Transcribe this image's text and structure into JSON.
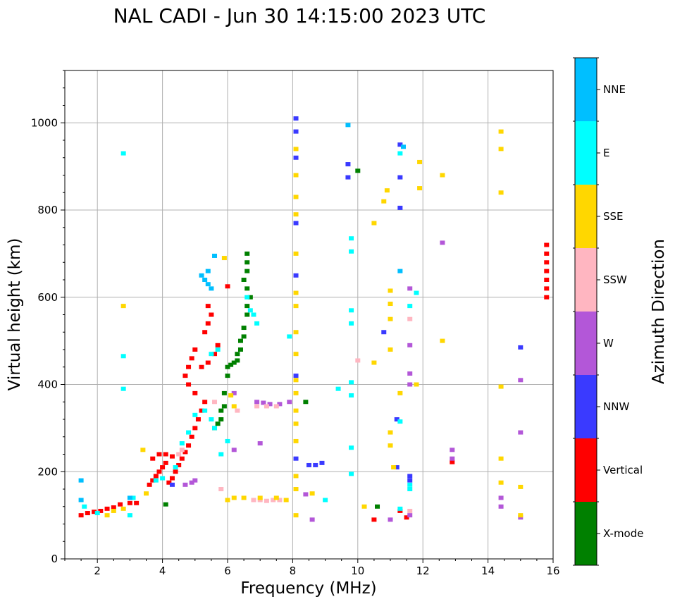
{
  "chart_data": {
    "type": "scatter",
    "title": "NAL CADI - Jun 30 14:15:00 2023 UTC",
    "xlabel": "Frequency (MHz)",
    "ylabel": "Virtual height (km)",
    "xlim": [
      1,
      16
    ],
    "ylim": [
      0,
      1120
    ],
    "xticks": [
      2,
      4,
      6,
      8,
      10,
      12,
      14,
      16
    ],
    "yticks": [
      0,
      200,
      400,
      600,
      800,
      1000
    ],
    "grid": true,
    "colorbar": {
      "title": "Azimuth Direction",
      "categories": [
        {
          "label": "X-mode",
          "color": "#008000"
        },
        {
          "label": "Vertical",
          "color": "#ff0000"
        },
        {
          "label": "NNW",
          "color": "#3a3aff"
        },
        {
          "label": "W",
          "color": "#b357d8"
        },
        {
          "label": "SSW",
          "color": "#ffb6c1"
        },
        {
          "label": "SSE",
          "color": "#ffd700"
        },
        {
          "label": "E",
          "color": "#00ffff"
        },
        {
          "label": "NNE",
          "color": "#00bfff"
        }
      ]
    },
    "series": [
      {
        "name": "Vertical",
        "points": [
          [
            1.5,
            100
          ],
          [
            1.7,
            105
          ],
          [
            1.9,
            108
          ],
          [
            2.1,
            110
          ],
          [
            2.3,
            115
          ],
          [
            2.5,
            118
          ],
          [
            2.7,
            125
          ],
          [
            3.0,
            128
          ],
          [
            3.2,
            128
          ],
          [
            3.6,
            170
          ],
          [
            3.7,
            180
          ],
          [
            3.8,
            190
          ],
          [
            3.9,
            200
          ],
          [
            4.0,
            210
          ],
          [
            4.1,
            220
          ],
          [
            4.2,
            175
          ],
          [
            4.3,
            185
          ],
          [
            4.4,
            200
          ],
          [
            4.5,
            215
          ],
          [
            4.6,
            230
          ],
          [
            4.7,
            245
          ],
          [
            4.8,
            260
          ],
          [
            4.9,
            280
          ],
          [
            5.0,
            300
          ],
          [
            5.1,
            320
          ],
          [
            5.2,
            340
          ],
          [
            5.3,
            360
          ],
          [
            5.0,
            380
          ],
          [
            4.8,
            400
          ],
          [
            4.7,
            420
          ],
          [
            4.8,
            440
          ],
          [
            4.9,
            460
          ],
          [
            5.0,
            480
          ],
          [
            5.2,
            440
          ],
          [
            5.4,
            450
          ],
          [
            5.6,
            470
          ],
          [
            5.7,
            490
          ],
          [
            5.3,
            520
          ],
          [
            5.4,
            540
          ],
          [
            5.5,
            560
          ],
          [
            5.4,
            580
          ],
          [
            3.7,
            230
          ],
          [
            3.9,
            240
          ],
          [
            4.1,
            240
          ],
          [
            4.3,
            235
          ],
          [
            6.0,
            625
          ],
          [
            15.8,
            600
          ],
          [
            15.8,
            620
          ],
          [
            15.8,
            640
          ],
          [
            15.8,
            660
          ],
          [
            15.8,
            680
          ],
          [
            15.8,
            700
          ],
          [
            15.8,
            720
          ],
          [
            12.9,
            222
          ],
          [
            10.5,
            90
          ],
          [
            11.3,
            110
          ],
          [
            11.5,
            95
          ]
        ]
      },
      {
        "name": "X-mode",
        "points": [
          [
            5.6,
            300
          ],
          [
            5.7,
            310
          ],
          [
            5.8,
            320
          ],
          [
            5.8,
            340
          ],
          [
            5.9,
            350
          ],
          [
            5.9,
            380
          ],
          [
            6.0,
            420
          ],
          [
            6.0,
            440
          ],
          [
            6.1,
            445
          ],
          [
            6.2,
            450
          ],
          [
            6.3,
            455
          ],
          [
            6.3,
            470
          ],
          [
            6.4,
            480
          ],
          [
            6.4,
            500
          ],
          [
            6.5,
            510
          ],
          [
            6.5,
            530
          ],
          [
            6.6,
            560
          ],
          [
            6.6,
            580
          ],
          [
            6.7,
            600
          ],
          [
            6.6,
            620
          ],
          [
            6.5,
            640
          ],
          [
            6.6,
            660
          ],
          [
            6.6,
            680
          ],
          [
            6.6,
            700
          ],
          [
            4.1,
            125
          ],
          [
            8.4,
            360
          ],
          [
            10.0,
            890
          ],
          [
            10.6,
            120
          ]
        ]
      },
      {
        "name": "NNW",
        "points": [
          [
            8.1,
            1010
          ],
          [
            8.1,
            980
          ],
          [
            8.1,
            920
          ],
          [
            8.1,
            770
          ],
          [
            8.1,
            650
          ],
          [
            8.1,
            420
          ],
          [
            8.1,
            230
          ],
          [
            8.5,
            215
          ],
          [
            8.7,
            215
          ],
          [
            8.9,
            220
          ],
          [
            11.2,
            210
          ],
          [
            11.6,
            180
          ],
          [
            11.6,
            190
          ],
          [
            11.2,
            320
          ],
          [
            10.8,
            520
          ],
          [
            11.3,
            805
          ],
          [
            11.3,
            875
          ],
          [
            11.3,
            950
          ],
          [
            9.7,
            905
          ],
          [
            9.7,
            875
          ],
          [
            15.0,
            485
          ],
          [
            4.3,
            170
          ]
        ]
      },
      {
        "name": "W",
        "points": [
          [
            4.7,
            170
          ],
          [
            4.9,
            175
          ],
          [
            5.0,
            180
          ],
          [
            6.9,
            360
          ],
          [
            7.1,
            358
          ],
          [
            7.3,
            355
          ],
          [
            7.6,
            355
          ],
          [
            7.9,
            360
          ],
          [
            6.2,
            250
          ],
          [
            6.2,
            380
          ],
          [
            8.4,
            148
          ],
          [
            8.6,
            90
          ],
          [
            11.0,
            90
          ],
          [
            11.6,
            100
          ],
          [
            11.6,
            400
          ],
          [
            11.6,
            425
          ],
          [
            11.6,
            490
          ],
          [
            11.6,
            620
          ],
          [
            12.6,
            725
          ],
          [
            12.9,
            230
          ],
          [
            12.9,
            250
          ],
          [
            14.4,
            140
          ],
          [
            14.4,
            120
          ],
          [
            15.0,
            410
          ],
          [
            15.0,
            290
          ],
          [
            15.0,
            95
          ],
          [
            7.0,
            265
          ]
        ]
      },
      {
        "name": "SSW",
        "points": [
          [
            6.8,
            135
          ],
          [
            7.0,
            135
          ],
          [
            7.2,
            133
          ],
          [
            7.4,
            135
          ],
          [
            7.6,
            135
          ],
          [
            6.9,
            350
          ],
          [
            7.2,
            350
          ],
          [
            7.5,
            350
          ],
          [
            5.8,
            160
          ],
          [
            5.6,
            360
          ],
          [
            6.3,
            340
          ],
          [
            11.6,
            110
          ],
          [
            11.6,
            550
          ],
          [
            10.0,
            455
          ],
          [
            4.5,
            240
          ],
          [
            4.6,
            250
          ]
        ]
      },
      {
        "name": "SSE",
        "points": [
          [
            2.3,
            100
          ],
          [
            2.5,
            110
          ],
          [
            2.8,
            115
          ],
          [
            3.4,
            250
          ],
          [
            3.5,
            150
          ],
          [
            6.0,
            135
          ],
          [
            6.2,
            140
          ],
          [
            6.5,
            140
          ],
          [
            7.0,
            140
          ],
          [
            7.5,
            140
          ],
          [
            7.8,
            135
          ],
          [
            8.1,
            100
          ],
          [
            8.1,
            160
          ],
          [
            8.1,
            190
          ],
          [
            8.1,
            270
          ],
          [
            8.1,
            310
          ],
          [
            8.1,
            340
          ],
          [
            8.1,
            380
          ],
          [
            8.1,
            410
          ],
          [
            8.1,
            470
          ],
          [
            8.1,
            520
          ],
          [
            8.1,
            580
          ],
          [
            8.1,
            610
          ],
          [
            8.1,
            700
          ],
          [
            8.1,
            790
          ],
          [
            8.1,
            830
          ],
          [
            8.1,
            880
          ],
          [
            8.1,
            940
          ],
          [
            8.6,
            150
          ],
          [
            10.2,
            120
          ],
          [
            10.5,
            450
          ],
          [
            10.5,
            770
          ],
          [
            10.8,
            820
          ],
          [
            10.9,
            845
          ],
          [
            11.0,
            615
          ],
          [
            11.0,
            585
          ],
          [
            11.0,
            550
          ],
          [
            11.0,
            480
          ],
          [
            11.0,
            290
          ],
          [
            11.0,
            260
          ],
          [
            11.1,
            210
          ],
          [
            11.3,
            380
          ],
          [
            11.8,
            400
          ],
          [
            11.9,
            850
          ],
          [
            11.9,
            910
          ],
          [
            12.6,
            500
          ],
          [
            12.6,
            880
          ],
          [
            14.4,
            980
          ],
          [
            14.4,
            940
          ],
          [
            14.4,
            840
          ],
          [
            14.4,
            395
          ],
          [
            14.4,
            230
          ],
          [
            14.4,
            175
          ],
          [
            15.0,
            165
          ],
          [
            15.0,
            100
          ],
          [
            6.2,
            350
          ],
          [
            6.1,
            375
          ],
          [
            5.9,
            690
          ],
          [
            2.8,
            580
          ]
        ]
      },
      {
        "name": "E",
        "points": [
          [
            1.6,
            120
          ],
          [
            2.0,
            105
          ],
          [
            2.8,
            465
          ],
          [
            2.8,
            390
          ],
          [
            2.8,
            930
          ],
          [
            3.0,
            100
          ],
          [
            3.1,
            140
          ],
          [
            3.8,
            180
          ],
          [
            4.0,
            185
          ],
          [
            4.4,
            210
          ],
          [
            4.6,
            265
          ],
          [
            4.8,
            290
          ],
          [
            5.0,
            330
          ],
          [
            5.3,
            340
          ],
          [
            5.5,
            320
          ],
          [
            5.6,
            300
          ],
          [
            5.8,
            240
          ],
          [
            6.0,
            270
          ],
          [
            5.5,
            470
          ],
          [
            5.7,
            480
          ],
          [
            6.6,
            600
          ],
          [
            6.7,
            570
          ],
          [
            6.8,
            560
          ],
          [
            6.9,
            540
          ],
          [
            7.9,
            510
          ],
          [
            9.8,
            570
          ],
          [
            9.8,
            540
          ],
          [
            9.8,
            405
          ],
          [
            9.8,
            375
          ],
          [
            9.8,
            255
          ],
          [
            9.8,
            195
          ],
          [
            9.8,
            705
          ],
          [
            9.8,
            735
          ],
          [
            11.3,
            115
          ],
          [
            11.3,
            315
          ],
          [
            11.3,
            930
          ],
          [
            11.6,
            160
          ],
          [
            11.6,
            170
          ],
          [
            11.6,
            580
          ],
          [
            11.8,
            610
          ],
          [
            9.0,
            135
          ],
          [
            9.4,
            390
          ]
        ]
      },
      {
        "name": "NNE",
        "points": [
          [
            1.5,
            180
          ],
          [
            1.5,
            135
          ],
          [
            3.0,
            140
          ],
          [
            5.3,
            640
          ],
          [
            5.4,
            630
          ],
          [
            5.5,
            620
          ],
          [
            5.4,
            660
          ],
          [
            5.6,
            695
          ],
          [
            5.2,
            650
          ],
          [
            9.7,
            995
          ],
          [
            11.3,
            660
          ],
          [
            11.4,
            945
          ]
        ]
      }
    ]
  }
}
